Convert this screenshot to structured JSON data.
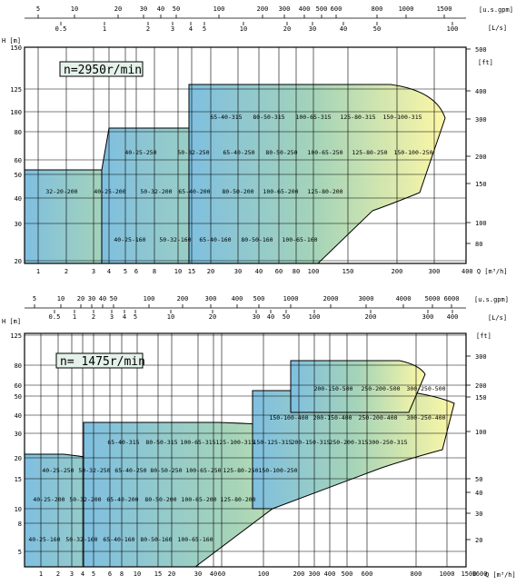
{
  "colors": {
    "cool": "#7fbfe0",
    "mid": "#a6d4b8",
    "warm": "#fdf7a6",
    "grid": "#000000",
    "label_box": "#e4f2ea"
  },
  "charts": [
    {
      "speed_label": "n=2950r/min",
      "units": {
        "usgpm": "[u.s.gpm]",
        "ls": "[L/s]",
        "head_m": "H [m]",
        "head_ft": "[ft]",
        "flow_m3h": "400 Q [m³/h]"
      },
      "usgpm_ticks": [
        "5",
        "10",
        "20",
        "30",
        "40",
        "50",
        "100",
        "200",
        "300",
        "400",
        "500",
        "600",
        "800",
        "1000",
        "1500"
      ],
      "ls_ticks": [
        "0.5",
        "1",
        "2",
        "3",
        "4",
        "5",
        "10",
        "20",
        "30",
        "40",
        "50",
        "100"
      ],
      "head_ticks_m": [
        "150",
        "125",
        "100",
        "80",
        "60",
        "50",
        "40",
        "30",
        "20"
      ],
      "head_ticks_ft": [
        "500",
        "400",
        "300",
        "200",
        "150",
        "100",
        "80"
      ],
      "flow_ticks": [
        "1",
        "2",
        "3",
        "4",
        "5",
        "6",
        "8",
        "10",
        "15",
        "20",
        "30",
        "40",
        "60",
        "80",
        "100",
        "150",
        "200",
        "300"
      ],
      "models": [
        "65-40-315",
        "80-50-315",
        "100-65-315",
        "125-80-315",
        "150-100-315",
        "40-25-250",
        "50-32-250",
        "65-40-250",
        "80-50-250",
        "100-65-250",
        "125-80-250",
        "150-100-250",
        "32-20-200",
        "40-25-200",
        "50-32-200",
        "65-40-200",
        "80-50-200",
        "100-65-200",
        "125-80-200",
        "40-25-160",
        "50-32-160",
        "65-40-160",
        "80-50-160",
        "100-65-160"
      ]
    },
    {
      "speed_label": "n= 1475r/min",
      "units": {
        "usgpm": "[u.s.gpm]",
        "ls": "[L/s]",
        "head_m": "H [m]",
        "head_ft": "[ft]",
        "flow_m3h": "Q [m³/h]"
      },
      "usgpm_ticks": [
        "5",
        "10",
        "20",
        "30",
        "40",
        "50",
        "100",
        "200",
        "300",
        "400",
        "500",
        "1000",
        "2000",
        "3000",
        "4000",
        "5000",
        "6000"
      ],
      "ls_ticks": [
        "0.5",
        "1",
        "2",
        "3",
        "4",
        "5",
        "10",
        "20",
        "30",
        "40",
        "50",
        "100",
        "200",
        "300",
        "400"
      ],
      "head_ticks_m": [
        "125",
        "80",
        "60",
        "50",
        "40",
        "30",
        "20",
        "15",
        "10",
        "8",
        "5"
      ],
      "head_ticks_ft": [
        "300",
        "200",
        "150",
        "100",
        "50",
        "40",
        "30",
        "20"
      ],
      "flow_ticks": [
        "1",
        "2",
        "3",
        "4",
        "5",
        "6",
        "8",
        "10",
        "15",
        "20",
        "30",
        "40",
        "60",
        "100",
        "200",
        "300",
        "400",
        "500",
        "600",
        "800",
        "1000",
        "1500",
        "1600"
      ],
      "models": [
        "200-150-500",
        "250-200-500",
        "300-250-500",
        "150-100-400",
        "200-150-400",
        "250-200-400",
        "300-250-400",
        "65-40-315",
        "80-50-315",
        "100-65-315",
        "125-100-315",
        "150-125-315",
        "200-150-315",
        "250-200-315",
        "300-250-315",
        "40-25-250",
        "50-32-250",
        "65-40-250",
        "80-50-250",
        "100-65-250",
        "125-80-250",
        "150-100-250",
        "40-25-200",
        "50-32-200",
        "65-40-200",
        "80-50-200",
        "100-65-200",
        "125-80-200",
        "40-25-160",
        "50-32-160",
        "65-40-160",
        "80-50-160",
        "100-65-160"
      ]
    }
  ],
  "chart_data": [
    {
      "type": "area",
      "title": "n=2950r/min",
      "xlabel": "Q [m³/h]",
      "ylabel": "H [m]",
      "x_scale": "log",
      "y_scale": "log",
      "xlim": [
        0.9,
        400
      ],
      "ylim": [
        20,
        150
      ],
      "regions": [
        {
          "name": "65-40-315",
          "q": [
            20,
            40
          ],
          "h": [
            60,
            125
          ]
        },
        {
          "name": "80-50-315",
          "q": [
            40,
            60
          ],
          "h": [
            60,
            125
          ]
        },
        {
          "name": "100-65-315",
          "q": [
            60,
            100
          ],
          "h": [
            60,
            125
          ]
        },
        {
          "name": "125-80-315",
          "q": [
            100,
            200
          ],
          "h": [
            60,
            125
          ]
        },
        {
          "name": "150-100-315",
          "q": [
            200,
            300
          ],
          "h": [
            60,
            125
          ]
        },
        {
          "name": "40-25-250",
          "q": [
            4,
            10
          ],
          "h": [
            40,
            80
          ]
        },
        {
          "name": "50-32-250",
          "q": [
            10,
            20
          ],
          "h": [
            40,
            80
          ]
        },
        {
          "name": "65-40-250",
          "q": [
            20,
            40
          ],
          "h": [
            40,
            80
          ]
        },
        {
          "name": "80-50-250",
          "q": [
            40,
            60
          ],
          "h": [
            40,
            80
          ]
        },
        {
          "name": "100-65-250",
          "q": [
            60,
            100
          ],
          "h": [
            40,
            80
          ]
        },
        {
          "name": "125-80-250",
          "q": [
            100,
            200
          ],
          "h": [
            40,
            80
          ]
        },
        {
          "name": "150-100-250",
          "q": [
            200,
            300
          ],
          "h": [
            40,
            80
          ]
        },
        {
          "name": "32-20-200",
          "q": [
            0.9,
            4
          ],
          "h": [
            25,
            55
          ]
        },
        {
          "name": "40-25-200",
          "q": [
            4,
            10
          ],
          "h": [
            25,
            55
          ]
        },
        {
          "name": "50-32-200",
          "q": [
            10,
            20
          ],
          "h": [
            25,
            55
          ]
        },
        {
          "name": "65-40-200",
          "q": [
            20,
            40
          ],
          "h": [
            25,
            55
          ]
        },
        {
          "name": "80-50-200",
          "q": [
            40,
            60
          ],
          "h": [
            25,
            55
          ]
        },
        {
          "name": "100-65-200",
          "q": [
            60,
            100
          ],
          "h": [
            25,
            55
          ]
        },
        {
          "name": "125-80-200",
          "q": [
            100,
            200
          ],
          "h": [
            25,
            55
          ]
        },
        {
          "name": "40-25-160",
          "q": [
            4,
            10
          ],
          "h": [
            20,
            35
          ]
        },
        {
          "name": "50-32-160",
          "q": [
            10,
            20
          ],
          "h": [
            20,
            35
          ]
        },
        {
          "name": "65-40-160",
          "q": [
            20,
            40
          ],
          "h": [
            20,
            35
          ]
        },
        {
          "name": "80-50-160",
          "q": [
            40,
            60
          ],
          "h": [
            20,
            35
          ]
        },
        {
          "name": "100-65-160",
          "q": [
            60,
            100
          ],
          "h": [
            20,
            35
          ]
        }
      ]
    },
    {
      "type": "area",
      "title": "n= 1475r/min",
      "xlabel": "Q [m³/h]",
      "ylabel": "H [m]",
      "x_scale": "log",
      "y_scale": "log",
      "xlim": [
        0.9,
        1600
      ],
      "ylim": [
        4.5,
        125
      ],
      "regions": [
        {
          "name": "200-150-500",
          "q": [
            300,
            500
          ],
          "h": [
            45,
            80
          ]
        },
        {
          "name": "250-200-500",
          "q": [
            500,
            800
          ],
          "h": [
            45,
            80
          ]
        },
        {
          "name": "300-250-500",
          "q": [
            800,
            1200
          ],
          "h": [
            45,
            80
          ]
        },
        {
          "name": "150-100-400",
          "q": [
            150,
            300
          ],
          "h": [
            30,
            50
          ]
        },
        {
          "name": "200-150-400",
          "q": [
            300,
            500
          ],
          "h": [
            30,
            50
          ]
        },
        {
          "name": "250-200-400",
          "q": [
            500,
            800
          ],
          "h": [
            30,
            50
          ]
        },
        {
          "name": "300-250-400",
          "q": [
            800,
            1500
          ],
          "h": [
            30,
            50
          ]
        },
        {
          "name": "65-40-315",
          "q": [
            4,
            10
          ],
          "h": [
            18,
            35
          ]
        },
        {
          "name": "80-50-315",
          "q": [
            10,
            20
          ],
          "h": [
            18,
            35
          ]
        },
        {
          "name": "100-65-315",
          "q": [
            20,
            40
          ],
          "h": [
            18,
            35
          ]
        },
        {
          "name": "125-100-315",
          "q": [
            40,
            100
          ],
          "h": [
            18,
            35
          ]
        },
        {
          "name": "150-125-315",
          "q": [
            100,
            200
          ],
          "h": [
            18,
            35
          ]
        },
        {
          "name": "200-150-315",
          "q": [
            200,
            400
          ],
          "h": [
            18,
            35
          ]
        },
        {
          "name": "250-200-315",
          "q": [
            400,
            800
          ],
          "h": [
            18,
            35
          ]
        },
        {
          "name": "300-250-315",
          "q": [
            800,
            1500
          ],
          "h": [
            18,
            35
          ]
        },
        {
          "name": "40-25-250",
          "q": [
            0.9,
            3
          ],
          "h": [
            12,
            22
          ]
        },
        {
          "name": "50-32-250",
          "q": [
            3,
            6
          ],
          "h": [
            12,
            22
          ]
        },
        {
          "name": "65-40-250",
          "q": [
            6,
            15
          ],
          "h": [
            12,
            22
          ]
        },
        {
          "name": "80-50-250",
          "q": [
            15,
            30
          ],
          "h": [
            12,
            22
          ]
        },
        {
          "name": "100-65-250",
          "q": [
            30,
            60
          ],
          "h": [
            12,
            22
          ]
        },
        {
          "name": "125-80-250",
          "q": [
            60,
            100
          ],
          "h": [
            12,
            22
          ]
        },
        {
          "name": "150-100-250",
          "q": [
            100,
            200
          ],
          "h": [
            12,
            22
          ]
        },
        {
          "name": "40-25-200",
          "q": [
            0.9,
            3
          ],
          "h": [
            8,
            14
          ]
        },
        {
          "name": "50-32-200",
          "q": [
            3,
            6
          ],
          "h": [
            8,
            14
          ]
        },
        {
          "name": "65-40-200",
          "q": [
            6,
            15
          ],
          "h": [
            8,
            14
          ]
        },
        {
          "name": "80-50-200",
          "q": [
            15,
            30
          ],
          "h": [
            8,
            14
          ]
        },
        {
          "name": "100-65-200",
          "q": [
            30,
            60
          ],
          "h": [
            8,
            14
          ]
        },
        {
          "name": "125-80-200",
          "q": [
            60,
            100
          ],
          "h": [
            8,
            14
          ]
        },
        {
          "name": "40-25-160",
          "q": [
            0.9,
            3
          ],
          "h": [
            4.5,
            8
          ]
        },
        {
          "name": "50-32-160",
          "q": [
            3,
            6
          ],
          "h": [
            4.5,
            8
          ]
        },
        {
          "name": "65-40-160",
          "q": [
            6,
            15
          ],
          "h": [
            4.5,
            8
          ]
        },
        {
          "name": "80-50-160",
          "q": [
            15,
            30
          ],
          "h": [
            4.5,
            8
          ]
        },
        {
          "name": "100-65-160",
          "q": [
            30,
            60
          ],
          "h": [
            4.5,
            8
          ]
        }
      ]
    }
  ]
}
